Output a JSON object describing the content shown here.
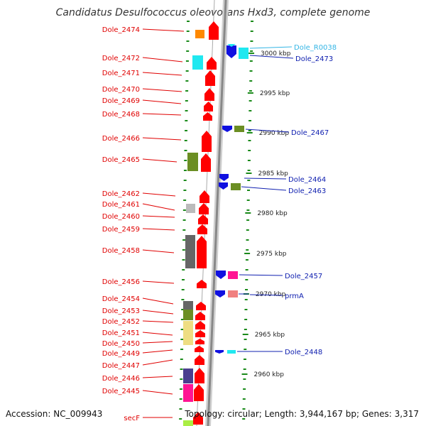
{
  "title": "Candidatus Desulfococcus oleovorans Hxd3, complete genome",
  "footer": {
    "accession": "Accession: NC_009943",
    "info": "Topology: circular; Length: 3,944,167 bp; Genes: 3,317"
  },
  "colors": {
    "red": "#ff0000",
    "blue": "#1010e0",
    "cyan": "#20e8f0",
    "orange": "#ff8800",
    "olive": "#6b8e23",
    "gray": "#bbbbbb",
    "darkgray": "#666666",
    "khaki": "#eedd82",
    "purple": "#4b3f8f",
    "magenta": "#ff1493",
    "pink": "#f08080",
    "lightgreen": "#aaee44",
    "label_red": "#e00000",
    "label_blue": "#1020b0",
    "label_cyan": "#33b5e5"
  },
  "ticks": [
    {
      "label": "3000 kbp"
    },
    {
      "label": "2995 kbp"
    },
    {
      "label": "2990 kbp"
    },
    {
      "label": "2985 kbp"
    },
    {
      "label": "2980 kbp"
    },
    {
      "label": "2975 kbp"
    },
    {
      "label": "2970 kbp"
    },
    {
      "label": "2965 kbp"
    },
    {
      "label": "2960 kbp"
    }
  ],
  "left_labels": [
    "Dole_2474",
    "Dole_2472",
    "Dole_2471",
    "Dole_2470",
    "Dole_2469",
    "Dole_2468",
    "Dole_2466",
    "Dole_2465",
    "Dole_2462",
    "Dole_2461",
    "Dole_2460",
    "Dole_2459",
    "Dole_2458",
    "Dole_2456",
    "Dole_2454",
    "Dole_2453",
    "Dole_2452",
    "Dole_2451",
    "Dole_2450",
    "Dole_2449",
    "Dole_2447",
    "Dole_2446",
    "Dole_2445",
    "secF"
  ],
  "right_labels": [
    "Dole_R0038",
    "Dole_2473",
    "Dole_2467",
    "Dole_2464",
    "Dole_2463",
    "Dole_2457",
    "prmA",
    "Dole_2448"
  ]
}
